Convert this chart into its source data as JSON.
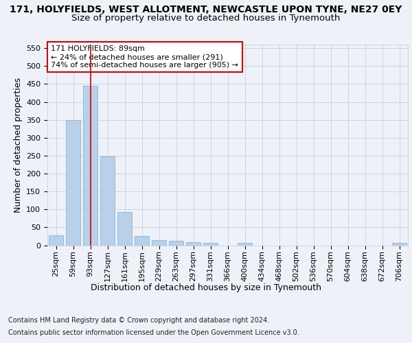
{
  "title": "171, HOLYFIELDS, WEST ALLOTMENT, NEWCASTLE UPON TYNE, NE27 0EY",
  "subtitle": "Size of property relative to detached houses in Tynemouth",
  "xlabel": "Distribution of detached houses by size in Tynemouth",
  "ylabel": "Number of detached properties",
  "bar_color": "#b8d0e8",
  "bar_edge_color": "#7aafd4",
  "categories": [
    "25sqm",
    "59sqm",
    "93sqm",
    "127sqm",
    "161sqm",
    "195sqm",
    "229sqm",
    "263sqm",
    "297sqm",
    "331sqm",
    "366sqm",
    "400sqm",
    "434sqm",
    "468sqm",
    "502sqm",
    "536sqm",
    "570sqm",
    "604sqm",
    "638sqm",
    "672sqm",
    "706sqm"
  ],
  "values": [
    28,
    350,
    445,
    248,
    93,
    25,
    15,
    12,
    8,
    6,
    0,
    6,
    0,
    0,
    0,
    0,
    0,
    0,
    0,
    0,
    6
  ],
  "ylim": [
    0,
    560
  ],
  "yticks": [
    0,
    50,
    100,
    150,
    200,
    250,
    300,
    350,
    400,
    450,
    500,
    550
  ],
  "vline_x": 2,
  "vline_color": "#cc0000",
  "annotation_text": "171 HOLYFIELDS: 89sqm\n← 24% of detached houses are smaller (291)\n74% of semi-detached houses are larger (905) →",
  "annotation_box_color": "#ffffff",
  "annotation_box_edge": "#cc0000",
  "footer1": "Contains HM Land Registry data © Crown copyright and database right 2024.",
  "footer2": "Contains public sector information licensed under the Open Government Licence v3.0.",
  "bg_color": "#eef2f8",
  "plot_bg_color": "#eef2f8",
  "title_fontsize": 10,
  "subtitle_fontsize": 9.5,
  "axis_label_fontsize": 9,
  "tick_fontsize": 8,
  "footer_fontsize": 7
}
